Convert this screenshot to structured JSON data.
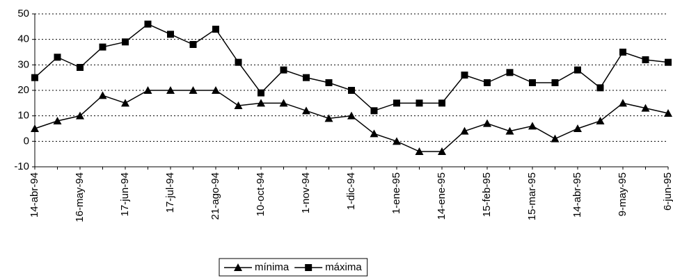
{
  "chart_data": {
    "type": "line",
    "categories": [
      "14-abr-94",
      null,
      "16-may-94",
      null,
      "17-jun-94",
      null,
      "17-jul-94",
      null,
      "21-ago-94",
      null,
      "10-oct-94",
      null,
      "1-nov-94",
      null,
      "1-dic-94",
      null,
      "1-ene-95",
      null,
      "14-ene-95",
      null,
      "15-feb-95",
      null,
      "15-mar-95",
      null,
      "14-abr-95",
      null,
      "9-may-95",
      null,
      "6-jun-95"
    ],
    "series": [
      {
        "name": "mínima",
        "color": "#000000",
        "marker": "triangle",
        "values": [
          5,
          8,
          10,
          18,
          15,
          20,
          20,
          20,
          20,
          14,
          15,
          15,
          12,
          9,
          10,
          3,
          0,
          -4,
          -4,
          4,
          7,
          4,
          6,
          1,
          5,
          8,
          15,
          13,
          11
        ]
      },
      {
        "name": "máxima",
        "color": "#000000",
        "marker": "square",
        "values": [
          25,
          33,
          29,
          37,
          39,
          46,
          42,
          38,
          44,
          31,
          19,
          28,
          25,
          23,
          20,
          12,
          15,
          15,
          15,
          26,
          23,
          27,
          23,
          23,
          28,
          21,
          35,
          32,
          31
        ]
      }
    ],
    "ylim": [
      -10,
      50
    ],
    "yticks": [
      -10,
      0,
      10,
      20,
      30,
      40,
      50
    ],
    "grid": true,
    "legend_position": "bottom"
  }
}
